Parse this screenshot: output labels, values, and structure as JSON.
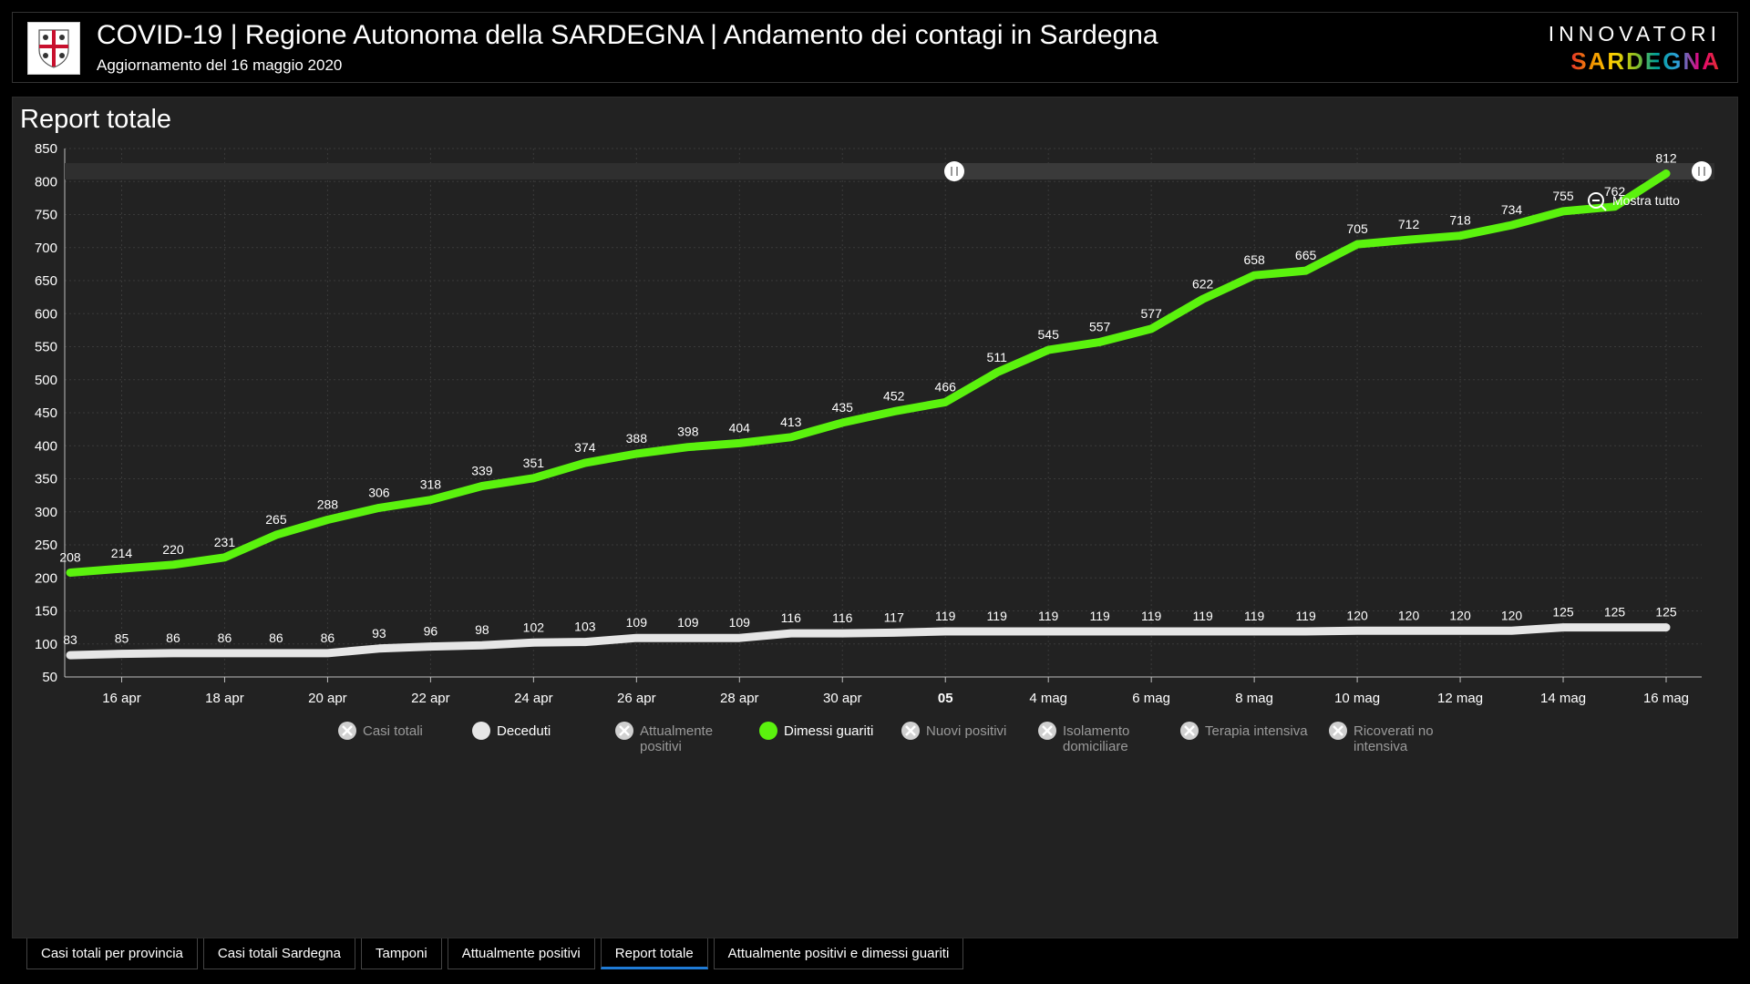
{
  "header": {
    "title": "COVID-19 | Regione Autonoma della SARDEGNA | Andamento dei contagi in Sardegna",
    "subtitle": "Aggiornamento del 16 maggio 2020",
    "brand_top": "INNOVATORI",
    "brand_bottom": "SARDEGNA"
  },
  "panel": {
    "title": "Report totale",
    "zoom_label": "Mostra tutto"
  },
  "tabs": [
    {
      "label": "Casi totali per provincia",
      "active": false
    },
    {
      "label": "Casi totali Sardegna",
      "active": false
    },
    {
      "label": "Tamponi",
      "active": false
    },
    {
      "label": "Attualmente positivi",
      "active": false
    },
    {
      "label": "Report totale",
      "active": true
    },
    {
      "label": "Attualmente positivi e dimessi guariti",
      "active": false
    }
  ],
  "chart_data": {
    "type": "line",
    "title": "Report totale",
    "ylim": [
      50,
      850
    ],
    "yticks": [
      50,
      100,
      150,
      200,
      250,
      300,
      350,
      400,
      450,
      500,
      550,
      600,
      650,
      700,
      750,
      800,
      850
    ],
    "x_tick_labels": [
      "16 apr",
      "18 apr",
      "20 apr",
      "22 apr",
      "24 apr",
      "26 apr",
      "28 apr",
      "30 apr",
      "05",
      "4 mag",
      "6 mag",
      "8 mag",
      "10 mag",
      "12 mag",
      "14 mag",
      "16 mag"
    ],
    "x_start": "2020-04-15",
    "x_end": "2020-05-16",
    "grid": true,
    "colors": {
      "dimessi": "#5bf20e",
      "deceduti": "#e6e6e6",
      "legend_off": "#d0d0d0"
    },
    "series": [
      {
        "name": "Dimessi guariti",
        "color": "#5bf20e",
        "x": [
          "2020-04-15",
          "2020-04-16",
          "2020-04-17",
          "2020-04-18",
          "2020-04-19",
          "2020-04-20",
          "2020-04-21",
          "2020-04-22",
          "2020-04-23",
          "2020-04-24",
          "2020-04-25",
          "2020-04-26",
          "2020-04-27",
          "2020-04-28",
          "2020-04-29",
          "2020-04-30",
          "2020-05-01",
          "2020-05-02",
          "2020-05-03",
          "2020-05-04",
          "2020-05-05",
          "2020-05-06",
          "2020-05-07",
          "2020-05-08",
          "2020-05-09",
          "2020-05-10",
          "2020-05-11",
          "2020-05-12",
          "2020-05-13",
          "2020-05-14",
          "2020-05-15",
          "2020-05-16"
        ],
        "values": [
          208,
          214,
          220,
          231,
          265,
          288,
          306,
          318,
          339,
          351,
          374,
          388,
          398,
          404,
          413,
          435,
          452,
          466,
          511,
          545,
          557,
          577,
          622,
          658,
          665,
          705,
          712,
          718,
          734,
          755,
          762,
          812
        ]
      },
      {
        "name": "Deceduti",
        "color": "#e6e6e6",
        "x": [
          "2020-04-15",
          "2020-04-16",
          "2020-04-17",
          "2020-04-18",
          "2020-04-19",
          "2020-04-20",
          "2020-04-21",
          "2020-04-22",
          "2020-04-23",
          "2020-04-24",
          "2020-04-25",
          "2020-04-26",
          "2020-04-27",
          "2020-04-28",
          "2020-04-29",
          "2020-04-30",
          "2020-05-01",
          "2020-05-02",
          "2020-05-03",
          "2020-05-04",
          "2020-05-05",
          "2020-05-06",
          "2020-05-07",
          "2020-05-08",
          "2020-05-09",
          "2020-05-10",
          "2020-05-11",
          "2020-05-12",
          "2020-05-13",
          "2020-05-14",
          "2020-05-15",
          "2020-05-16"
        ],
        "values": [
          83,
          85,
          86,
          86,
          86,
          86,
          93,
          96,
          98,
          102,
          103,
          109,
          109,
          109,
          116,
          116,
          117,
          119,
          119,
          119,
          119,
          119,
          119,
          119,
          119,
          120,
          120,
          120,
          120,
          125,
          125,
          125
        ]
      }
    ],
    "legend": [
      {
        "name": "Casi totali",
        "active": false
      },
      {
        "name": "Deceduti",
        "active": true,
        "color": "#e6e6e6"
      },
      {
        "name": "Attualmente positivi",
        "active": false
      },
      {
        "name": "Dimessi guariti",
        "active": true,
        "color": "#5bf20e"
      },
      {
        "name": "Nuovi positivi",
        "active": false
      },
      {
        "name": "Isolamento domiciliare",
        "active": false
      },
      {
        "name": "Terapia intensiva",
        "active": false
      },
      {
        "name": "Ricoverati no intensiva",
        "active": false
      }
    ]
  }
}
